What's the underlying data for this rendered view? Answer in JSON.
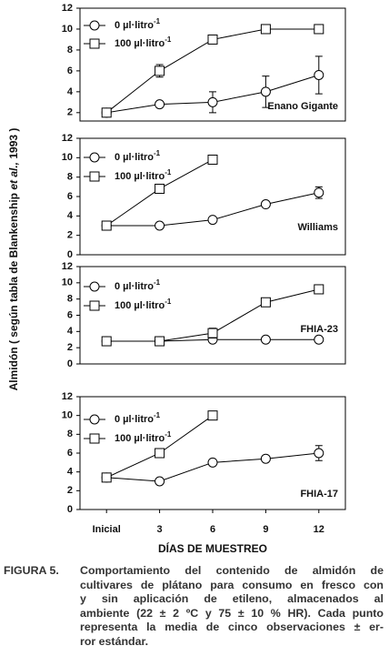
{
  "y_label": [
    "Almidón ( según tabla de Blankenship ",
    "et al.,",
    " 1993 )"
  ],
  "x_label": "DÍAS DE MUESTREO",
  "caption_label": "FIGURA 5.",
  "caption_lines": [
    "Comportamiento del contenido de almidón de",
    "cultivares de plátano para consumo en fresco con",
    "y sin aplicación de etileno, almacenados al",
    "ambiente (22 ± 2 ºC y 75 ± 10 % HR). Cada punto",
    "representa la media de cinco observaciones ± er-",
    "ror estándar."
  ],
  "chart_data": [
    {
      "type": "line",
      "label": "Enano Gigante",
      "ylim": [
        1.2,
        12
      ],
      "yticks": [
        2,
        4,
        6,
        8,
        10,
        12
      ],
      "series": [
        {
          "name": "0 µl·litro",
          "sup": "-1",
          "marker": "circle",
          "values": [
            2,
            2.8,
            3,
            4,
            5.6
          ],
          "errors": [
            null,
            null,
            1,
            1.5,
            1.8
          ]
        },
        {
          "name": "100 µl·litro",
          "sup": "-1",
          "marker": "square",
          "values": [
            2,
            6,
            9,
            10,
            10
          ],
          "errors": [
            null,
            0.6,
            null,
            null,
            null
          ]
        }
      ]
    },
    {
      "type": "line",
      "label": "Williams",
      "ylim": [
        0,
        12
      ],
      "yticks": [
        0,
        2,
        4,
        6,
        8,
        10,
        12
      ],
      "series": [
        {
          "name": "0 µl·litro",
          "sup": "-1",
          "marker": "circle",
          "values": [
            3,
            3,
            3.6,
            5.2,
            6.4
          ],
          "errors": [
            null,
            null,
            null,
            null,
            0.6
          ]
        },
        {
          "name": "100 µl·litro",
          "sup": "-1",
          "marker": "square",
          "values": [
            3,
            6.8,
            9.8,
            null,
            null
          ],
          "errors": [
            null,
            null,
            null,
            null,
            null
          ]
        }
      ]
    },
    {
      "type": "line",
      "label": "FHIA-23",
      "ylim": [
        0,
        12
      ],
      "yticks": [
        0,
        2,
        4,
        6,
        8,
        10,
        12
      ],
      "series": [
        {
          "name": "0 µl·litro",
          "sup": "-1",
          "marker": "circle",
          "values": [
            2.8,
            2.8,
            3,
            3,
            3
          ],
          "errors": [
            null,
            null,
            null,
            null,
            null
          ]
        },
        {
          "name": "100 µl·litro",
          "sup": "-1",
          "marker": "square",
          "values": [
            2.8,
            2.8,
            3.8,
            7.6,
            9.2
          ],
          "errors": [
            null,
            null,
            0.6,
            null,
            null
          ]
        }
      ]
    },
    {
      "type": "line",
      "label": "FHIA-17",
      "ylim": [
        0,
        12
      ],
      "yticks": [
        0,
        2,
        4,
        6,
        8,
        10,
        12
      ],
      "categories": [
        "Inicial",
        "3",
        "6",
        "9",
        "12"
      ],
      "series": [
        {
          "name": "0 µl·litro",
          "sup": "-1",
          "marker": "circle",
          "values": [
            3.4,
            3,
            5,
            5.4,
            6
          ],
          "errors": [
            null,
            null,
            null,
            null,
            0.8
          ]
        },
        {
          "name": "100 µl·litro",
          "sup": "-1",
          "marker": "square",
          "values": [
            3.4,
            6,
            10,
            null,
            null
          ],
          "errors": [
            null,
            null,
            null,
            null,
            null
          ]
        }
      ]
    }
  ]
}
